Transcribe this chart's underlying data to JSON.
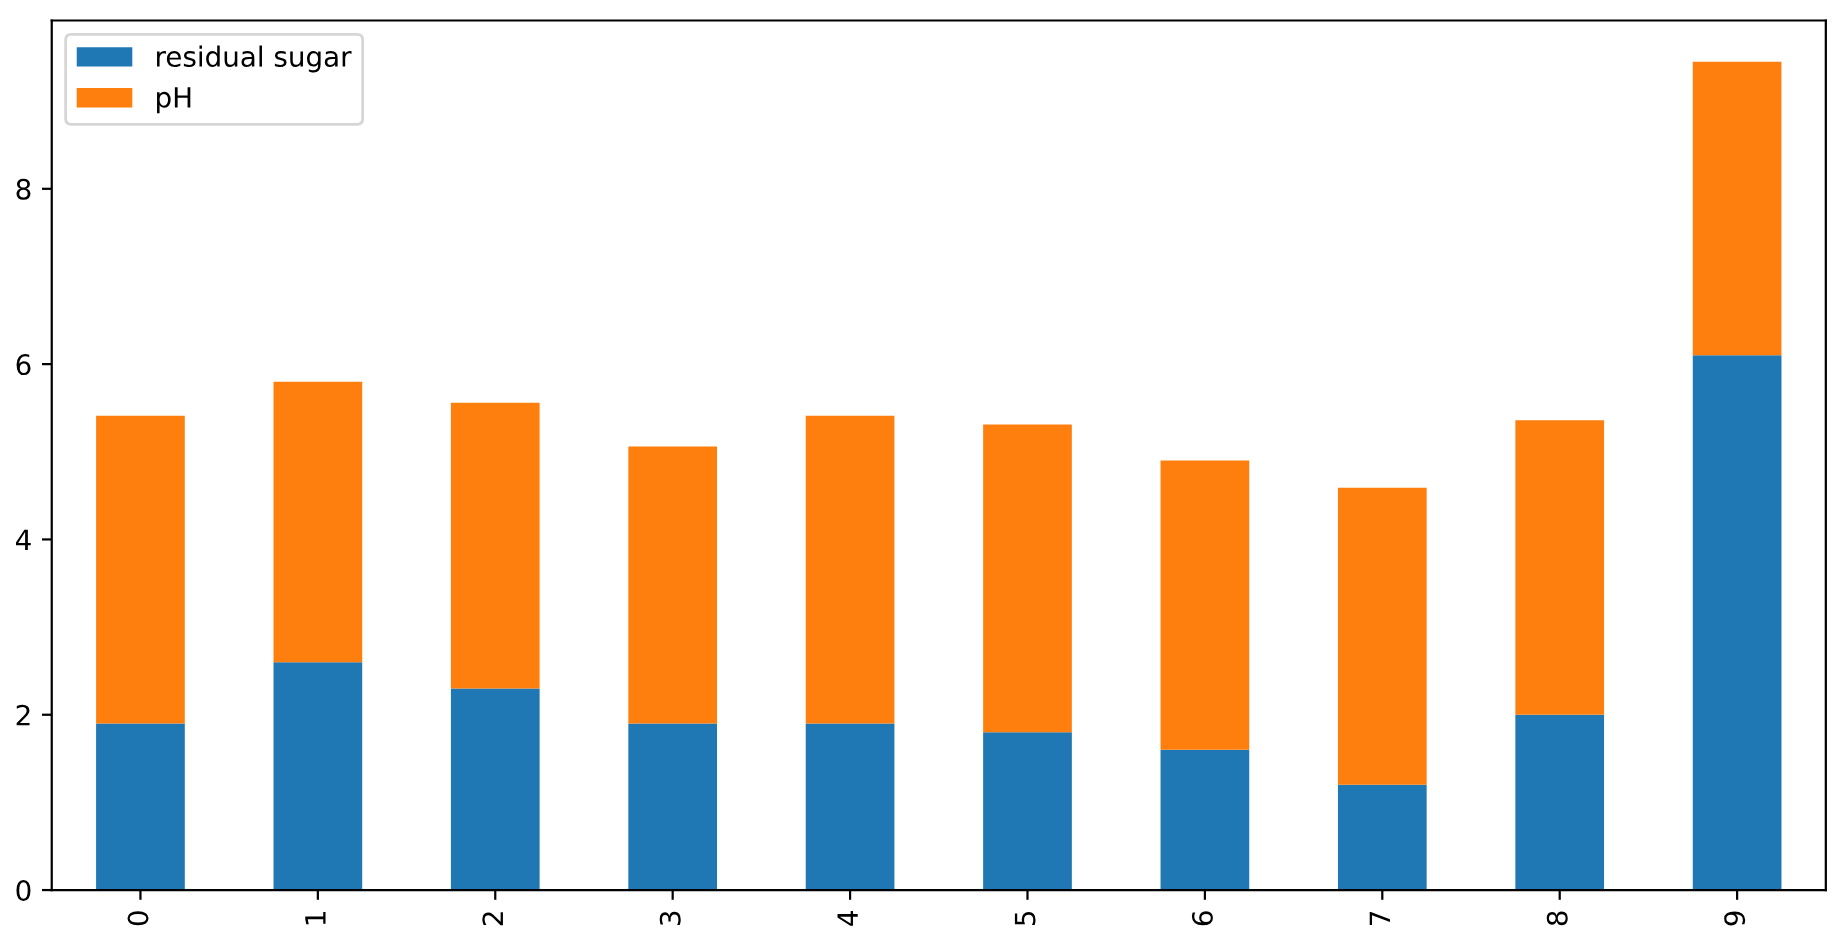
{
  "chart_data": {
    "type": "bar",
    "stacked": true,
    "categories": [
      "0",
      "1",
      "2",
      "3",
      "4",
      "5",
      "6",
      "7",
      "8",
      "9"
    ],
    "series": [
      {
        "name": "residual sugar",
        "color": "#1f77b4",
        "values": [
          1.9,
          2.6,
          2.3,
          1.9,
          1.9,
          1.8,
          1.6,
          1.2,
          2.0,
          6.1
        ]
      },
      {
        "name": "pH",
        "color": "#ff7f0e",
        "values": [
          3.51,
          3.2,
          3.26,
          3.16,
          3.51,
          3.51,
          3.3,
          3.39,
          3.36,
          3.35
        ]
      }
    ],
    "ylim": [
      0,
      9.92
    ],
    "yticks": [
      0,
      2,
      4,
      6,
      8
    ],
    "grid": false,
    "legend": "top left"
  }
}
